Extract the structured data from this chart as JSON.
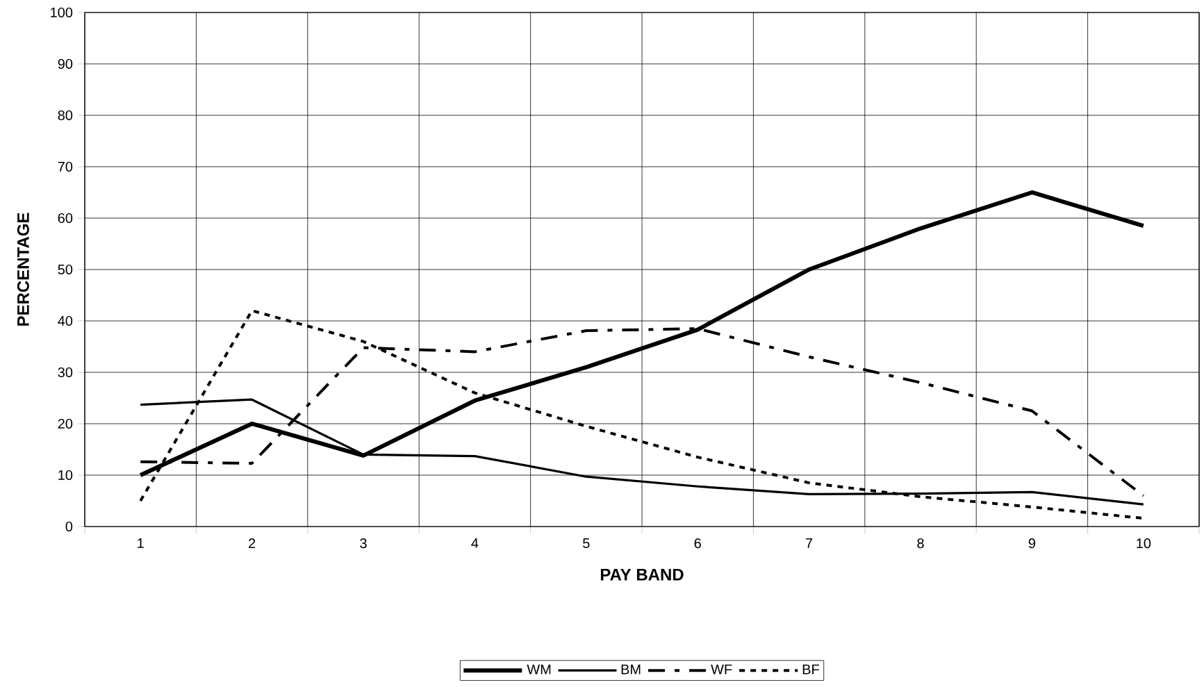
{
  "chart_data": {
    "type": "line",
    "xlabel": "PAY BAND",
    "ylabel": "PERCENTAGE",
    "categories": [
      "1",
      "2",
      "3",
      "4",
      "5",
      "6",
      "7",
      "8",
      "9",
      "10"
    ],
    "series": [
      {
        "name": "WM",
        "color": "#000000",
        "line_style": "solid",
        "values": [
          10,
          20,
          13.8,
          24.5,
          31,
          38.3,
          50,
          58,
          65,
          58.5
        ]
      },
      {
        "name": "BM",
        "color": "#000000",
        "line_style": "solid",
        "values": [
          23.7,
          24.7,
          14,
          13.7,
          9.7,
          7.8,
          6.3,
          6.4,
          6.7,
          4.3
        ]
      },
      {
        "name": "WF",
        "color": "#000000",
        "line_style": "dashed",
        "values": [
          12.6,
          12.3,
          34.8,
          34,
          38.1,
          38.5,
          33,
          28,
          22.5,
          6
        ]
      },
      {
        "name": "BF",
        "color": "#000000",
        "line_style": "dotted",
        "values": [
          5,
          42,
          36,
          26,
          19.5,
          13.5,
          8.5,
          5.8,
          3.8,
          1.6
        ]
      }
    ],
    "ylim": [
      0,
      100
    ],
    "yticks": [
      0,
      10,
      20,
      30,
      40,
      50,
      60,
      70,
      80,
      90,
      100
    ],
    "grid": true,
    "legend": "bottom",
    "marker": "none"
  }
}
